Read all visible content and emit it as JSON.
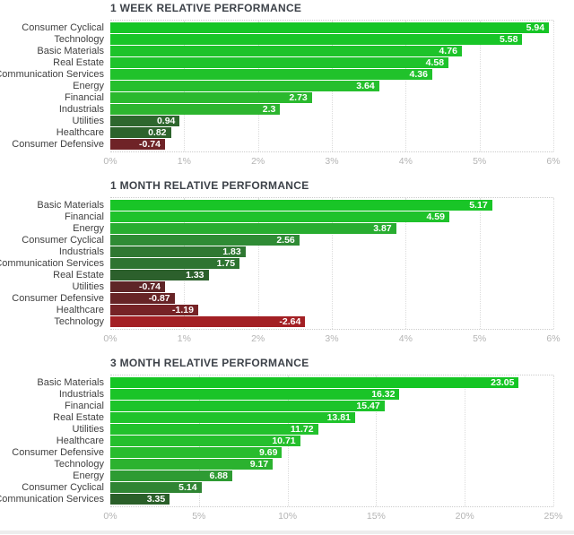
{
  "page": {
    "bottom_strip_color": "#ededed",
    "positive_accent": "#1ac628",
    "negative_accent": "#a32024"
  },
  "chart_data": [
    {
      "type": "bar",
      "orientation": "horizontal",
      "title": "1 WEEK RELATIVE PERFORMANCE",
      "categories": [
        "Consumer Cyclical",
        "Technology",
        "Basic Materials",
        "Real Estate",
        "Communication Services",
        "Energy",
        "Financial",
        "Industrials",
        "Utilities",
        "Healthcare",
        "Consumer Defensive"
      ],
      "values": [
        5.94,
        5.58,
        4.76,
        4.58,
        4.36,
        3.64,
        2.73,
        2.3,
        0.94,
        0.82,
        -0.74
      ],
      "colors": [
        "#16c526",
        "#18c527",
        "#1dc32a",
        "#1ec32b",
        "#20c22b",
        "#25bf2d",
        "#2ab92e",
        "#2db52f",
        "#2e672e",
        "#2d632c",
        "#6f2327"
      ],
      "xlabel": "",
      "ylabel": "",
      "xlim": [
        0,
        6
      ],
      "tick_labels": [
        "0%",
        "1%",
        "2%",
        "3%",
        "4%",
        "5%",
        "6%"
      ],
      "grid": "vertical-dotted",
      "legend": "none",
      "value_label_position": "inside-end"
    },
    {
      "type": "bar",
      "orientation": "horizontal",
      "title": "1 MONTH RELATIVE PERFORMANCE",
      "categories": [
        "Basic Materials",
        "Financial",
        "Energy",
        "Consumer Cyclical",
        "Industrials",
        "Communication Services",
        "Real Estate",
        "Utilities",
        "Consumer Defensive",
        "Healthcare",
        "Technology"
      ],
      "values": [
        5.17,
        4.59,
        3.87,
        2.56,
        1.83,
        1.75,
        1.33,
        -0.74,
        -0.87,
        -1.19,
        -2.64
      ],
      "colors": [
        "#19c527",
        "#1fc22b",
        "#28ad30",
        "#2f8b35",
        "#2f7832",
        "#2e7431",
        "#2c602c",
        "#5e2527",
        "#672426",
        "#762326",
        "#a32024"
      ],
      "xlabel": "",
      "ylabel": "",
      "xlim": [
        0,
        6
      ],
      "tick_labels": [
        "0%",
        "1%",
        "2%",
        "3%",
        "4%",
        "5%",
        "6%"
      ],
      "grid": "vertical-dotted",
      "legend": "none",
      "value_label_position": "inside-end"
    },
    {
      "type": "bar",
      "orientation": "horizontal",
      "title": "3 MONTH RELATIVE PERFORMANCE",
      "categories": [
        "Basic Materials",
        "Industrials",
        "Financial",
        "Real Estate",
        "Utilities",
        "Healthcare",
        "Consumer Defensive",
        "Technology",
        "Energy",
        "Consumer Cyclical",
        "Communication Services"
      ],
      "values": [
        23.05,
        16.32,
        15.47,
        13.81,
        11.72,
        10.71,
        9.69,
        9.17,
        6.88,
        5.14,
        3.35
      ],
      "colors": [
        "#15c524",
        "#1ac428",
        "#1cc42a",
        "#1fc32b",
        "#22c12c",
        "#25bf2d",
        "#28bc2e",
        "#2bb22f",
        "#2e9b33",
        "#2f8533",
        "#2a5f29"
      ],
      "xlabel": "",
      "ylabel": "",
      "xlim": [
        0,
        25
      ],
      "tick_labels": [
        "0%",
        "5%",
        "10%",
        "15%",
        "20%",
        "25%"
      ],
      "grid": "vertical-dotted",
      "legend": "none",
      "value_label_position": "inside-end"
    }
  ]
}
